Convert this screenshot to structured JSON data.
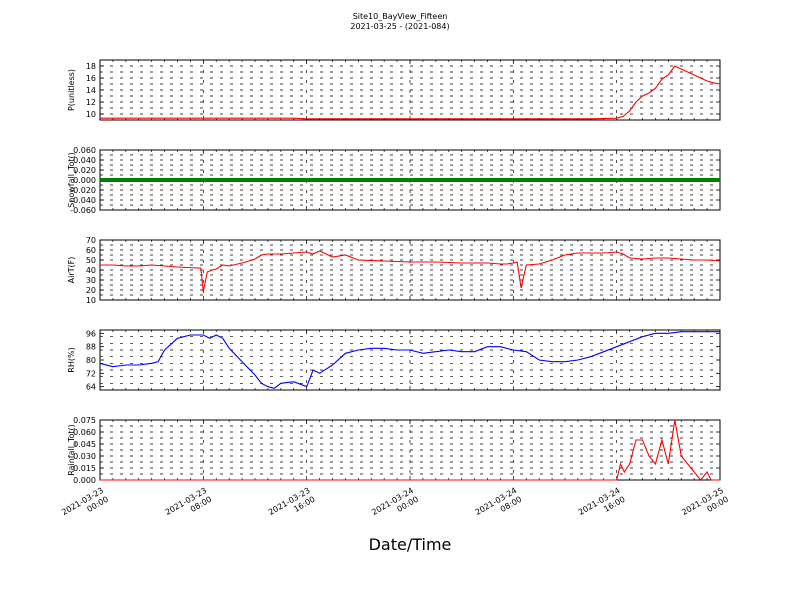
{
  "title": "Site10_BayView_Fifteen",
  "subtitle": "2021-03-25 - (2021-084)",
  "xlabel": "Date/Time",
  "x_ticks": [
    "2021-03-23 00:00",
    "2021-03-23 08:00",
    "2021-03-23 16:00",
    "2021-03-24 00:00",
    "2021-03-24 08:00",
    "2021-03-24 16:00",
    "2021-03-25 00:00"
  ],
  "chart_data": [
    {
      "type": "line",
      "ylabel": "P(unitless)",
      "x_range_hours": [
        0,
        48
      ],
      "ylim": [
        9,
        19
      ],
      "yticks": [
        10,
        12,
        14,
        16,
        18
      ],
      "grid": true,
      "color": "#ff0000",
      "series": [
        {
          "x": [
            0,
            4,
            8,
            12,
            15,
            16,
            20,
            24,
            28,
            32,
            36,
            38,
            40,
            40.5,
            41,
            41.5,
            42,
            42.5,
            43,
            43.5,
            44,
            44.5,
            45,
            45.5,
            46,
            46.5,
            47,
            47.5,
            48
          ],
          "y": [
            9.3,
            9.3,
            9.3,
            9.3,
            9.3,
            9.2,
            9.2,
            9.2,
            9.2,
            9.2,
            9.2,
            9.2,
            9.3,
            9.6,
            10.5,
            12.0,
            13.0,
            13.5,
            14.3,
            15.8,
            16.5,
            18.0,
            17.5,
            17.0,
            16.5,
            16.0,
            15.5,
            15.2,
            15.0
          ]
        }
      ]
    },
    {
      "type": "line",
      "ylabel": "Snowfall_Tot()",
      "x_range_hours": [
        0,
        48
      ],
      "ylim": [
        -0.06,
        0.06
      ],
      "yticks": [
        -0.06,
        -0.04,
        -0.02,
        0.0,
        0.02,
        0.04,
        0.06
      ],
      "grid": true,
      "color": "#008000",
      "series": [
        {
          "x": [
            0,
            48
          ],
          "y": [
            0.0,
            0.0
          ]
        }
      ]
    },
    {
      "type": "line",
      "ylabel": "AirT(F)",
      "x_range_hours": [
        0,
        48
      ],
      "ylim": [
        10,
        70
      ],
      "yticks": [
        10,
        20,
        30,
        40,
        50,
        60,
        70
      ],
      "grid": true,
      "color": "#ff0000",
      "series": [
        {
          "x": [
            0,
            1,
            2,
            3,
            4,
            5,
            6,
            7.5,
            7.8,
            8,
            8.3,
            8.7,
            9,
            9.5,
            10,
            11,
            12,
            12.5,
            13,
            14,
            15,
            16,
            16.5,
            17,
            18,
            19,
            20,
            22,
            24,
            26,
            28,
            30,
            31,
            31.5,
            32,
            32.3,
            32.6,
            33,
            34,
            35,
            36,
            37,
            38,
            39,
            40,
            40.5,
            41,
            42,
            43,
            44,
            45,
            46,
            47,
            48
          ],
          "y": [
            45,
            45,
            44,
            44,
            45,
            44,
            43,
            42,
            42,
            18,
            38,
            40,
            41,
            45,
            44,
            47,
            51,
            55,
            56,
            56,
            57,
            58,
            56,
            59,
            53,
            55,
            50,
            49,
            48,
            48,
            47,
            47,
            46,
            46,
            47,
            48,
            22,
            45,
            46,
            50,
            55,
            57,
            57,
            57,
            58,
            56,
            52,
            51,
            52,
            52,
            51,
            50,
            50,
            49
          ]
        }
      ]
    },
    {
      "type": "line",
      "ylabel": "RH(%)",
      "x_range_hours": [
        0,
        48
      ],
      "ylim": [
        62,
        98
      ],
      "yticks": [
        64,
        72,
        80,
        88,
        96
      ],
      "grid": true,
      "color": "#0000ff",
      "series": [
        {
          "x": [
            0,
            1,
            2,
            3,
            4,
            4.5,
            5,
            6,
            7,
            7.5,
            8,
            8.5,
            9,
            9.5,
            10,
            11,
            12,
            12.5,
            13,
            13.5,
            14,
            15,
            16,
            16.5,
            17,
            18,
            19,
            20,
            21,
            22,
            23,
            24,
            25,
            26,
            27,
            28,
            29,
            30,
            31,
            32,
            33,
            34,
            35,
            36,
            37,
            38,
            39,
            40,
            41,
            42,
            43,
            44,
            45,
            46,
            47,
            48
          ],
          "y": [
            78,
            76,
            77,
            77,
            78,
            79,
            86,
            93,
            95,
            95,
            95,
            93,
            95,
            93,
            87,
            79,
            71,
            66,
            64,
            63,
            66,
            67,
            64,
            74,
            72,
            77,
            84,
            86,
            87,
            87,
            86,
            86,
            84,
            85,
            86,
            85,
            85,
            88,
            88,
            86,
            85,
            80,
            79,
            79,
            80,
            82,
            85,
            88,
            91,
            94,
            96,
            96,
            97,
            97,
            97,
            97
          ]
        }
      ]
    },
    {
      "type": "line",
      "ylabel": "Rainfall_Tot()",
      "x_range_hours": [
        0,
        48
      ],
      "ylim": [
        0,
        0.075
      ],
      "yticks": [
        0.0,
        0.015,
        0.03,
        0.045,
        0.06,
        0.075
      ],
      "grid": true,
      "color": "#ff0000",
      "series": [
        {
          "x": [
            0,
            40,
            40.3,
            40.6,
            41,
            41.5,
            42,
            42.5,
            43,
            43.5,
            44,
            44.5,
            45,
            45.5,
            46,
            46.5,
            47,
            47.3,
            47.6,
            48
          ],
          "y": [
            0,
            0,
            0.02,
            0.01,
            0.02,
            0.05,
            0.05,
            0.03,
            0.02,
            0.05,
            0.02,
            0.075,
            0.03,
            0.02,
            0.01,
            0.0,
            0.01,
            0.0,
            0.0,
            0.0
          ]
        }
      ]
    }
  ]
}
